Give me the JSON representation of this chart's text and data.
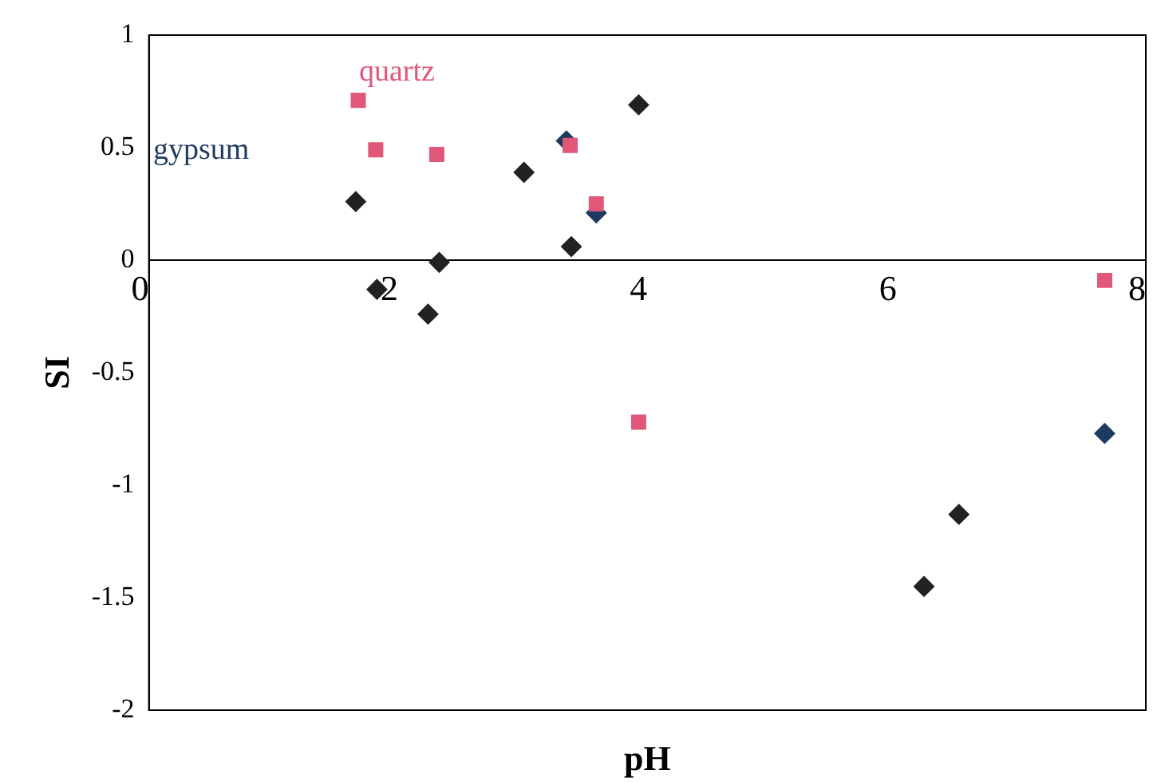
{
  "chart_data": {
    "type": "scatter",
    "xlabel": "pH",
    "ylabel": "SI",
    "xlim": [
      0,
      8
    ],
    "xticks": [
      0,
      2,
      4,
      6,
      8
    ],
    "ylim": [
      -2,
      1
    ],
    "yticks": [
      -2,
      -1.5,
      -1,
      -0.5,
      0,
      0.5,
      1
    ],
    "grid": false,
    "legend": false,
    "marker": "diamond",
    "series": [
      {
        "color": "#222222",
        "x": [
          1.66,
          1.83,
          2.24,
          2.33,
          3.01,
          3.39,
          3.93,
          6.22,
          6.5
        ],
        "values": [
          0.26,
          -0.13,
          -0.24,
          -0.01,
          0.39,
          0.06,
          0.69,
          -1.45,
          -1.13
        ]
      },
      {
        "name": "gypsum",
        "color": "#1f3a5f",
        "x": [
          3.35,
          3.59,
          7.67
        ],
        "values": [
          0.53,
          0.21,
          -0.77
        ]
      },
      {
        "name": "quartz",
        "color": "#e0577a",
        "marker": "square",
        "x": [
          1.68,
          1.82,
          2.31,
          3.38,
          3.59,
          3.93,
          7.67
        ],
        "values": [
          0.71,
          0.49,
          0.47,
          0.51,
          0.25,
          -0.72,
          -0.09
        ]
      }
    ]
  }
}
